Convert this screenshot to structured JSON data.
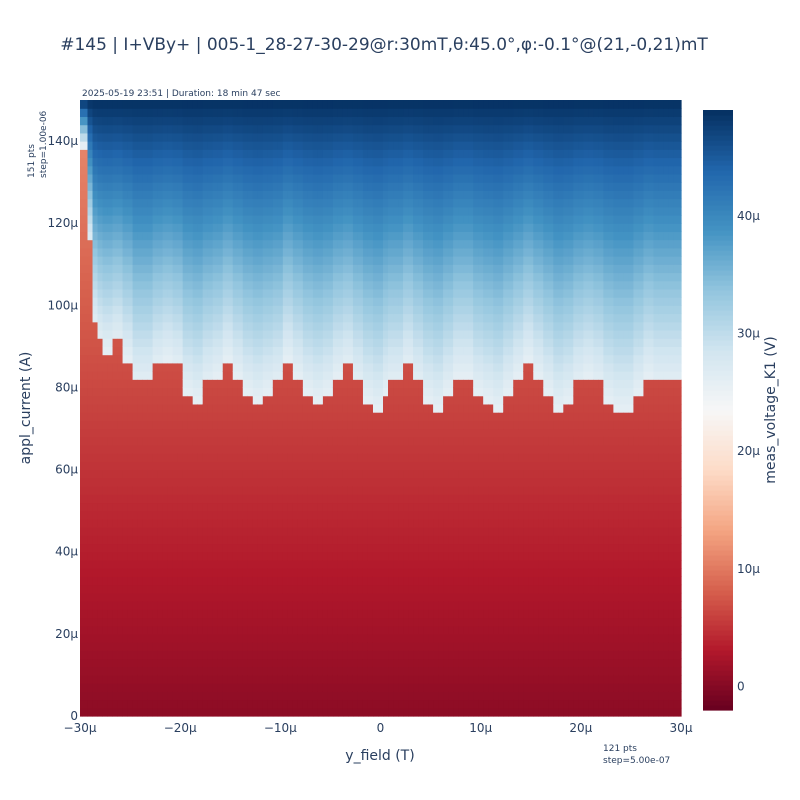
{
  "chart_data": {
    "type": "heatmap",
    "title": "#145 | I+VBy+ | 005-1_28-27-30-29@r:30mT,θ:45.0°,φ:-0.1°@(21,-0,21)mT",
    "subtitle": "2025-05-19 23:51 | Duration: 18 min 47 sec",
    "xlabel": "y_field (T)",
    "ylabel": "appl_current (A)",
    "colorbar_label": "meas_voltage_K1 (V)",
    "x_note": [
      "121 pts",
      "step=5.00e-07"
    ],
    "y_note": [
      "151 pts",
      "step=1.00e-06"
    ],
    "x_range": [
      -3e-05,
      3e-05
    ],
    "x_step": 5e-07,
    "x_points": 121,
    "y_range": [
      0,
      0.00015
    ],
    "y_step": 1e-06,
    "y_points": 151,
    "z_range": [
      -2e-06,
      4.9e-05
    ],
    "colorscale": [
      "#67001f",
      "#b2182b",
      "#d6604d",
      "#f4a582",
      "#fddbc7",
      "#f7f7f7",
      "#d1e5f0",
      "#92c5de",
      "#4393c3",
      "#2166ac",
      "#053061"
    ],
    "x_ticks": [
      {
        "value": -3e-05,
        "label": "−30μ"
      },
      {
        "value": -2e-05,
        "label": "−20μ"
      },
      {
        "value": -1e-05,
        "label": "−10μ"
      },
      {
        "value": 0,
        "label": "0"
      },
      {
        "value": 1e-05,
        "label": "10μ"
      },
      {
        "value": 2e-05,
        "label": "20μ"
      },
      {
        "value": 3e-05,
        "label": "30μ"
      }
    ],
    "y_ticks": [
      {
        "value": 0,
        "label": "0"
      },
      {
        "value": 2e-05,
        "label": "20μ"
      },
      {
        "value": 4e-05,
        "label": "40μ"
      },
      {
        "value": 6e-05,
        "label": "60μ"
      },
      {
        "value": 8e-05,
        "label": "80μ"
      },
      {
        "value": 0.0001,
        "label": "100μ"
      },
      {
        "value": 0.00012,
        "label": "120μ"
      },
      {
        "value": 0.00014,
        "label": "140μ"
      }
    ],
    "colorbar_ticks": [
      {
        "value": 0,
        "label": "0"
      },
      {
        "value": 1e-05,
        "label": "10μ"
      },
      {
        "value": 2e-05,
        "label": "20μ"
      },
      {
        "value": 3e-05,
        "label": "30μ"
      },
      {
        "value": 4e-05,
        "label": "40μ"
      }
    ],
    "switching_boundary": {
      "description": "current above which voltage jumps from resistive (red) to blue regime",
      "x": [
        -3e-05,
        -2.95e-05,
        -2.9e-05,
        -2.85e-05,
        -2.8e-05,
        -2.75e-05,
        -2.7e-05,
        -2.6e-05,
        -2.5e-05,
        -2.4e-05,
        -2.3e-05,
        -2.2e-05,
        -2.1e-05,
        -2e-05,
        -1.9e-05,
        -1.8e-05,
        -1.7e-05,
        -1.6e-05,
        -1.5e-05,
        -1.4e-05,
        -1.3e-05,
        -1.2e-05,
        -1.1e-05,
        -1e-05,
        -9e-06,
        -8e-06,
        -7e-06,
        -6e-06,
        -5e-06,
        -4e-06,
        -3e-06,
        -2e-06,
        -1e-06,
        0,
        1e-06,
        2e-06,
        3e-06,
        4e-06,
        5e-06,
        6e-06,
        7e-06,
        8e-06,
        9e-06,
        1e-05,
        1.1e-05,
        1.2e-05,
        1.3e-05,
        1.4e-05,
        1.5e-05,
        1.6e-05,
        1.7e-05,
        1.8e-05,
        1.9e-05,
        2e-05,
        2.1e-05,
        2.2e-05,
        2.3e-05,
        2.4e-05,
        2.5e-05,
        2.6e-05,
        2.7e-05,
        2.8e-05,
        2.9e-05,
        3e-05
      ],
      "y": [
        0.000139,
        0.000115,
        9.5e-05,
        9.1e-05,
        8.9e-05,
        8.9e-05,
        9.1e-05,
        8.7e-05,
        8.1e-05,
        8.1e-05,
        8.5e-05,
        8.7e-05,
        8.5e-05,
        7.9e-05,
        7.7e-05,
        8.1e-05,
        8.3e-05,
        8.7e-05,
        8.3e-05,
        7.9e-05,
        7.7e-05,
        7.9e-05,
        8.1e-05,
        8.7e-05,
        8.3e-05,
        7.9e-05,
        7.7e-05,
        7.9e-05,
        8.3e-05,
        8.5e-05,
        8.1e-05,
        7.7e-05,
        7.5e-05,
        7.9e-05,
        8.1e-05,
        8.5e-05,
        8.1e-05,
        7.7e-05,
        7.5e-05,
        7.9e-05,
        8.3e-05,
        8.3e-05,
        7.9e-05,
        7.7e-05,
        7.5e-05,
        7.9e-05,
        8.3e-05,
        8.7e-05,
        8.3e-05,
        7.9e-05,
        7.5e-05,
        7.7e-05,
        8.1e-05,
        8.3e-05,
        8.1e-05,
        7.7e-05,
        7.5e-05,
        7.5e-05,
        7.9e-05,
        8.3e-05,
        8.1e-05,
        8.1e-05,
        8.1e-05,
        8.1e-05
      ]
    }
  }
}
